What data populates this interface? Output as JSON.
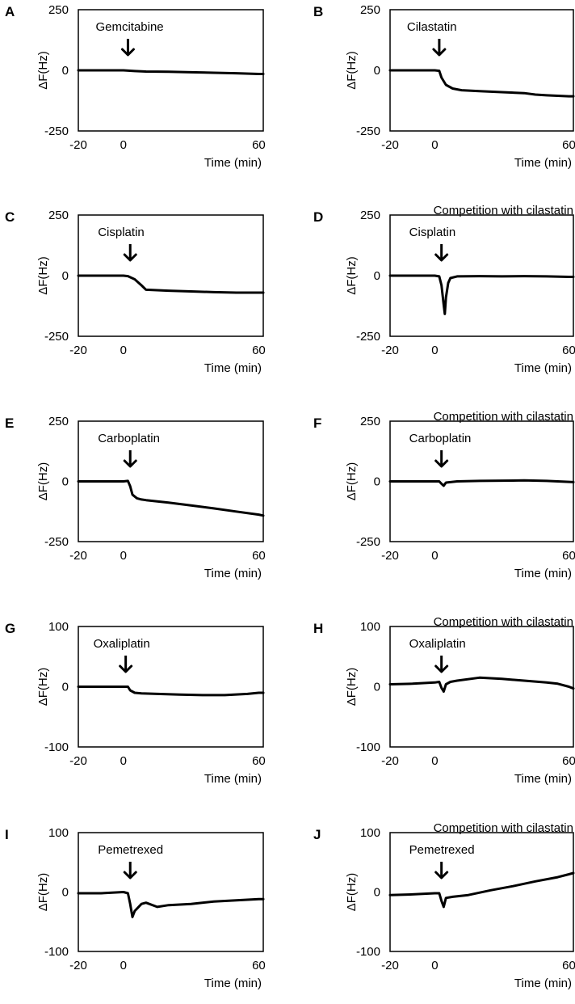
{
  "chart_data": [
    {
      "type": "line",
      "panel": "A",
      "title": "",
      "drug": "Gemcitabine",
      "xlabel": "Time (min)",
      "ylabel": "ΔF(Hz)",
      "xlim": [
        -20,
        62
      ],
      "ylim": [
        -250,
        250
      ],
      "xticks": [
        "-20",
        "0",
        "60"
      ],
      "yticks": [
        "250",
        "0",
        "-250"
      ],
      "arrow_x": 2,
      "series": [
        {
          "name": "Gemcitabine",
          "x": [
            -20,
            -10,
            0,
            5,
            10,
            20,
            30,
            40,
            50,
            60,
            62
          ],
          "y": [
            0,
            0,
            0,
            -3,
            -5,
            -6,
            -8,
            -10,
            -12,
            -15,
            -15
          ]
        }
      ]
    },
    {
      "type": "line",
      "panel": "B",
      "title": "",
      "drug": "Cilastatin",
      "xlabel": "Time (min)",
      "ylabel": "ΔF(Hz)",
      "xlim": [
        -20,
        62
      ],
      "ylim": [
        -250,
        250
      ],
      "xticks": [
        "-20",
        "0",
        "60"
      ],
      "yticks": [
        "250",
        "0",
        "-250"
      ],
      "arrow_x": 2,
      "series": [
        {
          "name": "Cilastatin",
          "x": [
            -20,
            -10,
            0,
            2,
            3,
            5,
            8,
            12,
            20,
            30,
            40,
            45,
            50,
            55,
            60,
            62
          ],
          "y": [
            0,
            0,
            0,
            -2,
            -30,
            -60,
            -75,
            -82,
            -86,
            -90,
            -94,
            -100,
            -103,
            -105,
            -107,
            -107
          ]
        }
      ]
    },
    {
      "type": "line",
      "panel": "C",
      "title": "",
      "drug": "Cisplatin",
      "xlabel": "Time (min)",
      "ylabel": "ΔF(Hz)",
      "xlim": [
        -20,
        62
      ],
      "ylim": [
        -250,
        250
      ],
      "xticks": [
        "-20",
        "0",
        "60"
      ],
      "yticks": [
        "250",
        "0",
        "-250"
      ],
      "arrow_x": 3,
      "series": [
        {
          "name": "Cisplatin",
          "x": [
            -20,
            -10,
            0,
            2,
            5,
            8,
            10,
            15,
            20,
            30,
            40,
            50,
            60,
            62
          ],
          "y": [
            0,
            0,
            0,
            -2,
            -15,
            -40,
            -58,
            -60,
            -62,
            -65,
            -68,
            -70,
            -70,
            -70
          ]
        }
      ]
    },
    {
      "type": "line",
      "panel": "D",
      "title": "Competition with cilastatin",
      "drug": "Cisplatin",
      "xlabel": "Time (min)",
      "ylabel": "ΔF(Hz)",
      "xlim": [
        -20,
        62
      ],
      "ylim": [
        -250,
        250
      ],
      "xticks": [
        "-20",
        "0",
        "60"
      ],
      "yticks": [
        "250",
        "0",
        "-250"
      ],
      "arrow_x": 3,
      "series": [
        {
          "name": "Cisplatin",
          "x": [
            -20,
            -10,
            0,
            2,
            3,
            4,
            4.5,
            5,
            6,
            7,
            10,
            20,
            30,
            40,
            50,
            60,
            62
          ],
          "y": [
            0,
            0,
            0,
            -3,
            -40,
            -120,
            -158,
            -90,
            -30,
            -10,
            -3,
            -2,
            -3,
            -2,
            -3,
            -5,
            -5
          ]
        }
      ]
    },
    {
      "type": "line",
      "panel": "E",
      "title": "",
      "drug": "Carboplatin",
      "xlabel": "Time (min)",
      "ylabel": "ΔF(Hz)",
      "xlim": [
        -20,
        62
      ],
      "ylim": [
        -250,
        250
      ],
      "xticks": [
        "-20",
        "0",
        "60"
      ],
      "yticks": [
        "250",
        "0",
        "-250"
      ],
      "arrow_x": 3,
      "series": [
        {
          "name": "Carboplatin",
          "x": [
            -20,
            -10,
            0,
            2,
            3,
            4,
            6,
            8,
            10,
            20,
            30,
            40,
            50,
            60,
            62
          ],
          "y": [
            0,
            0,
            0,
            2,
            -20,
            -55,
            -70,
            -75,
            -78,
            -88,
            -100,
            -112,
            -125,
            -138,
            -142
          ]
        }
      ]
    },
    {
      "type": "line",
      "panel": "F",
      "title": "Competition with cilastatin",
      "drug": "Carboplatin",
      "xlabel": "Time (min)",
      "ylabel": "ΔF(Hz)",
      "xlim": [
        -20,
        62
      ],
      "ylim": [
        -250,
        250
      ],
      "xticks": [
        "-20",
        "0",
        "60"
      ],
      "yticks": [
        "250",
        "0",
        "-250"
      ],
      "arrow_x": 3,
      "series": [
        {
          "name": "Carboplatin",
          "x": [
            -20,
            -10,
            0,
            2,
            3,
            4,
            5,
            10,
            20,
            30,
            40,
            50,
            60,
            62
          ],
          "y": [
            0,
            0,
            0,
            0,
            -10,
            -18,
            -5,
            0,
            2,
            3,
            4,
            2,
            -2,
            -3
          ]
        }
      ]
    },
    {
      "type": "line",
      "panel": "G",
      "title": "",
      "drug": "Oxaliplatin",
      "xlabel": "Time (min)",
      "ylabel": "ΔF(Hz)",
      "xlim": [
        -20,
        62
      ],
      "ylim": [
        -100,
        100
      ],
      "xticks": [
        "-20",
        "0",
        "60"
      ],
      "yticks": [
        "100",
        "0",
        "-100"
      ],
      "arrow_x": 1,
      "series": [
        {
          "name": "Oxaliplatin",
          "x": [
            -20,
            -10,
            0,
            2,
            3,
            5,
            8,
            15,
            25,
            35,
            45,
            55,
            60,
            62
          ],
          "y": [
            0,
            0,
            0,
            0,
            -6,
            -10,
            -11,
            -12,
            -13,
            -14,
            -14,
            -12,
            -10,
            -10
          ]
        }
      ]
    },
    {
      "type": "line",
      "panel": "H",
      "title": "Competition with cilastatin",
      "drug": "Oxaliplatin",
      "xlabel": "Time (min)",
      "ylabel": "ΔF(Hz)",
      "xlim": [
        -20,
        62
      ],
      "ylim": [
        -100,
        100
      ],
      "xticks": [
        "-20",
        "0",
        "60"
      ],
      "yticks": [
        "100",
        "0",
        "-100"
      ],
      "arrow_x": 3,
      "series": [
        {
          "name": "Oxaliplatin",
          "x": [
            -20,
            -10,
            0,
            2,
            3,
            4,
            5,
            7,
            10,
            20,
            30,
            40,
            50,
            55,
            60,
            62
          ],
          "y": [
            4,
            5,
            7,
            8,
            -2,
            -8,
            4,
            8,
            10,
            15,
            13,
            10,
            7,
            5,
            0,
            -3
          ]
        }
      ]
    },
    {
      "type": "line",
      "panel": "I",
      "title": "",
      "drug": "Pemetrexed",
      "xlabel": "Time (min)",
      "ylabel": "ΔF(Hz)",
      "xlim": [
        -20,
        62
      ],
      "ylim": [
        -100,
        100
      ],
      "xticks": [
        "-20",
        "0",
        "60"
      ],
      "yticks": [
        "100",
        "0",
        "-100"
      ],
      "arrow_x": 3,
      "series": [
        {
          "name": "Pemetrexed",
          "x": [
            -20,
            -10,
            0,
            2,
            3,
            4,
            5,
            6,
            8,
            10,
            15,
            20,
            30,
            40,
            50,
            60,
            62
          ],
          "y": [
            -2,
            -2,
            0,
            -2,
            -20,
            -42,
            -32,
            -28,
            -20,
            -18,
            -25,
            -22,
            -20,
            -16,
            -14,
            -12,
            -12
          ]
        }
      ]
    },
    {
      "type": "line",
      "panel": "J",
      "title": "Competition with cilastatin",
      "drug": "Pemetrexed",
      "xlabel": "Time (min)",
      "ylabel": "ΔF(Hz)",
      "xlim": [
        -20,
        62
      ],
      "ylim": [
        -100,
        100
      ],
      "xticks": [
        "-20",
        "0",
        "60"
      ],
      "yticks": [
        "100",
        "0",
        "-100"
      ],
      "arrow_x": 3,
      "series": [
        {
          "name": "Pemetrexed",
          "x": [
            -20,
            -10,
            0,
            2,
            3,
            4,
            5,
            8,
            15,
            25,
            35,
            45,
            55,
            60,
            62
          ],
          "y": [
            -5,
            -4,
            -2,
            -2,
            -15,
            -25,
            -10,
            -8,
            -5,
            3,
            10,
            18,
            25,
            30,
            32
          ]
        }
      ]
    }
  ]
}
